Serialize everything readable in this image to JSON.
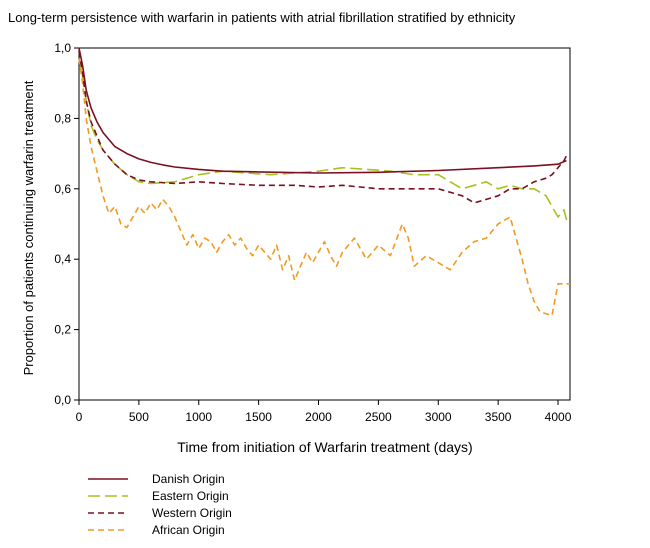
{
  "chart_data": {
    "type": "line",
    "title": "Long-term persistence with warfarin in patients with atrial fibrillation stratified by ethnicity",
    "xlabel": "Time from initiation of Warfarin treatment  (days)",
    "ylabel": "Proportion of patients continuing warfarin treatment",
    "xlim": [
      0,
      4100
    ],
    "ylim": [
      0,
      1.0
    ],
    "xticks": [
      0,
      500,
      1000,
      1500,
      2000,
      2500,
      3000,
      3500,
      4000
    ],
    "xtick_labels": [
      "0",
      "500",
      "1000",
      "1500",
      "2000",
      "2500",
      "3000",
      "3500",
      "4000"
    ],
    "yticks": [
      0,
      0.2,
      0.4,
      0.6,
      0.8,
      1.0
    ],
    "ytick_labels": [
      "0,0",
      "0,2",
      "0,4",
      "0,6",
      "0,8",
      "1,0"
    ],
    "grid": false,
    "legend_position": "bottom-left",
    "series": [
      {
        "name": "Danish Origin",
        "color": "#7a1020",
        "dash": "solid",
        "x": [
          0,
          30,
          60,
          100,
          150,
          200,
          300,
          400,
          500,
          600,
          700,
          800,
          1000,
          1200,
          1500,
          2000,
          2500,
          3000,
          3500,
          3800,
          4000,
          4070
        ],
        "y": [
          1.0,
          0.95,
          0.88,
          0.83,
          0.79,
          0.76,
          0.72,
          0.7,
          0.685,
          0.675,
          0.668,
          0.662,
          0.655,
          0.65,
          0.648,
          0.645,
          0.647,
          0.652,
          0.66,
          0.665,
          0.67,
          0.68
        ]
      },
      {
        "name": "Eastern Origin",
        "color": "#a8c020",
        "dash": "long-dash",
        "x": [
          0,
          30,
          60,
          100,
          150,
          200,
          300,
          400,
          500,
          600,
          800,
          1000,
          1200,
          1400,
          1600,
          1800,
          2000,
          2200,
          2400,
          2600,
          2800,
          3000,
          3100,
          3200,
          3300,
          3400,
          3500,
          3600,
          3700,
          3800,
          3900,
          3950,
          4000,
          4050,
          4080
        ],
        "y": [
          0.97,
          0.92,
          0.85,
          0.78,
          0.74,
          0.71,
          0.67,
          0.64,
          0.62,
          0.615,
          0.62,
          0.64,
          0.65,
          0.645,
          0.64,
          0.645,
          0.65,
          0.66,
          0.655,
          0.65,
          0.64,
          0.64,
          0.62,
          0.6,
          0.61,
          0.62,
          0.6,
          0.61,
          0.6,
          0.6,
          0.58,
          0.55,
          0.52,
          0.54,
          0.5
        ]
      },
      {
        "name": "Western Origin",
        "color": "#7a1020",
        "dash": "dash",
        "x": [
          0,
          30,
          60,
          100,
          150,
          200,
          300,
          400,
          500,
          600,
          800,
          1000,
          1200,
          1500,
          1800,
          2000,
          2200,
          2500,
          2800,
          3000,
          3200,
          3300,
          3400,
          3500,
          3600,
          3700,
          3800,
          3900,
          3950,
          4000,
          4050,
          4080
        ],
        "y": [
          0.99,
          0.93,
          0.85,
          0.79,
          0.75,
          0.71,
          0.67,
          0.64,
          0.625,
          0.62,
          0.615,
          0.62,
          0.615,
          0.61,
          0.61,
          0.605,
          0.61,
          0.6,
          0.6,
          0.6,
          0.58,
          0.56,
          0.57,
          0.58,
          0.6,
          0.6,
          0.62,
          0.63,
          0.64,
          0.66,
          0.68,
          0.7
        ]
      },
      {
        "name": "African Origin",
        "color": "#f09a20",
        "dash": "dash",
        "x": [
          0,
          30,
          60,
          100,
          150,
          200,
          250,
          300,
          350,
          400,
          450,
          500,
          550,
          600,
          650,
          700,
          750,
          800,
          850,
          900,
          950,
          1000,
          1050,
          1100,
          1150,
          1200,
          1250,
          1300,
          1350,
          1400,
          1450,
          1500,
          1550,
          1600,
          1650,
          1700,
          1750,
          1800,
          1850,
          1900,
          1950,
          2000,
          2050,
          2100,
          2150,
          2200,
          2300,
          2400,
          2500,
          2600,
          2700,
          2750,
          2800,
          2900,
          3000,
          3100,
          3200,
          3300,
          3400,
          3500,
          3600,
          3700,
          3750,
          3800,
          3850,
          3950,
          4000,
          4100
        ],
        "y": [
          0.97,
          0.9,
          0.8,
          0.72,
          0.65,
          0.58,
          0.53,
          0.55,
          0.5,
          0.49,
          0.52,
          0.55,
          0.53,
          0.56,
          0.54,
          0.57,
          0.55,
          0.52,
          0.48,
          0.44,
          0.47,
          0.43,
          0.46,
          0.45,
          0.42,
          0.45,
          0.47,
          0.44,
          0.46,
          0.43,
          0.41,
          0.44,
          0.42,
          0.4,
          0.44,
          0.37,
          0.41,
          0.34,
          0.38,
          0.42,
          0.39,
          0.42,
          0.45,
          0.41,
          0.38,
          0.42,
          0.46,
          0.4,
          0.44,
          0.41,
          0.5,
          0.46,
          0.38,
          0.41,
          0.39,
          0.37,
          0.42,
          0.45,
          0.46,
          0.5,
          0.52,
          0.4,
          0.33,
          0.28,
          0.25,
          0.24,
          0.33,
          0.33
        ]
      }
    ]
  }
}
